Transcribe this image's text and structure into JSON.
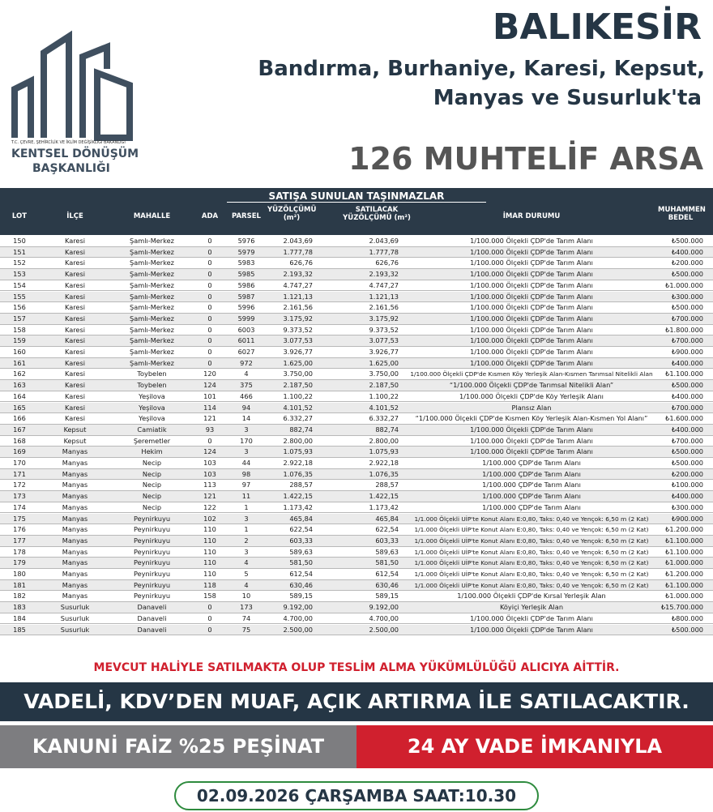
{
  "logo": {
    "ministry": "T.C. ÇEVRE, ŞEHİRCİLİK VE İKLİM DEĞİŞİKLİĞİ BAKANLIĞI",
    "line1": "KENTSEL DÖNÜŞÜM",
    "line2": "BAŞKANLIĞI"
  },
  "header": {
    "title": "BALIKESİR",
    "subtitle1": "Bandırma, Burhaniye, Karesi, Kepsut,",
    "subtitle2": "Manyas ve Susurluk'ta",
    "headline": "126 MUHTELİF ARSA"
  },
  "table": {
    "group_title": "SATIŞA SUNULAN TAŞINMAZLAR",
    "columns": [
      "LOT",
      "İLÇE",
      "MAHALLE",
      "ADA",
      "PARSEL",
      "YÜZÖLÇÜMÜ (m²)",
      "SATILACAK YÜZÖLÇÜMÜ (m²)",
      "İMAR DURUMU",
      "MUHAMMEN BEDEL"
    ],
    "rows": [
      [
        "150",
        "Karesi",
        "Şamlı-Merkez",
        "0",
        "5976",
        "2.043,69",
        "2.043,69",
        "1/100.000 Ölçekli ÇDP'de Tarım Alanı",
        "₺500.000"
      ],
      [
        "151",
        "Karesi",
        "Şamlı-Merkez",
        "0",
        "5979",
        "1.777,78",
        "1.777,78",
        "1/100.000 Ölçekli ÇDP'de Tarım Alanı",
        "₺400.000"
      ],
      [
        "152",
        "Karesi",
        "Şamlı-Merkez",
        "0",
        "5983",
        "626,76",
        "626,76",
        "1/100.000 Ölçekli ÇDP'de Tarım Alanı",
        "₺200.000"
      ],
      [
        "153",
        "Karesi",
        "Şamlı-Merkez",
        "0",
        "5985",
        "2.193,32",
        "2.193,32",
        "1/100.000 Ölçekli ÇDP'de Tarım Alanı",
        "₺500.000"
      ],
      [
        "154",
        "Karesi",
        "Şamlı-Merkez",
        "0",
        "5986",
        "4.747,27",
        "4.747,27",
        "1/100.000 Ölçekli ÇDP'de Tarım Alanı",
        "₺1.000.000"
      ],
      [
        "155",
        "Karesi",
        "Şamlı-Merkez",
        "0",
        "5987",
        "1.121,13",
        "1.121,13",
        "1/100.000 Ölçekli ÇDP'de Tarım Alanı",
        "₺300.000"
      ],
      [
        "156",
        "Karesi",
        "Şamlı-Merkez",
        "0",
        "5996",
        "2.161,56",
        "2.161,56",
        "1/100.000 Ölçekli ÇDP'de Tarım Alanı",
        "₺500.000"
      ],
      [
        "157",
        "Karesi",
        "Şamlı-Merkez",
        "0",
        "5999",
        "3.175,92",
        "3.175,92",
        "1/100.000 Ölçekli ÇDP'de Tarım Alanı",
        "₺700.000"
      ],
      [
        "158",
        "Karesi",
        "Şamlı-Merkez",
        "0",
        "6003",
        "9.373,52",
        "9.373,52",
        "1/100.000 Ölçekli ÇDP'de Tarım Alanı",
        "₺1.800.000"
      ],
      [
        "159",
        "Karesi",
        "Şamlı-Merkez",
        "0",
        "6011",
        "3.077,53",
        "3.077,53",
        "1/100.000 Ölçekli ÇDP'de Tarım Alanı",
        "₺700.000"
      ],
      [
        "160",
        "Karesi",
        "Şamlı-Merkez",
        "0",
        "6027",
        "3.926,77",
        "3.926,77",
        "1/100.000 Ölçekli ÇDP'de Tarım Alanı",
        "₺900.000"
      ],
      [
        "161",
        "Karesi",
        "Şamlı-Merkez",
        "0",
        "972",
        "1.625,00",
        "1.625,00",
        "1/100.000 Ölçekli ÇDP'de Tarım Alanı",
        "₺400.000"
      ],
      [
        "162",
        "Karesi",
        "Toybelen",
        "120",
        "4",
        "3.750,00",
        "3.750,00",
        "1/100.000 Ölçekli ÇDP'de Kısmen Köy Yerleşik Alan-Kısmen Tarımsal Nitelikli Alan",
        "₺1.100.000"
      ],
      [
        "163",
        "Karesi",
        "Toybelen",
        "124",
        "375",
        "2.187,50",
        "2.187,50",
        "“1/100.000 Ölçekli ÇDP'de Tarımsal Nitelikli Alan”",
        "₺500.000"
      ],
      [
        "164",
        "Karesi",
        "Yeşilova",
        "101",
        "466",
        "1.100,22",
        "1.100,22",
        "1/100.000 Ölçekli ÇDP'de Köy Yerleşik Alanı",
        "₺400.000"
      ],
      [
        "165",
        "Karesi",
        "Yeşilova",
        "114",
        "94",
        "4.101,52",
        "4.101,52",
        "Plansız Alan",
        "₺700.000"
      ],
      [
        "166",
        "Karesi",
        "Yeşilova",
        "121",
        "14",
        "6.332,27",
        "6.332,27",
        "“1/100.000 Ölçekli ÇDP'de Kısmen Köy Yerleşik Alan-Kısmen Yol Alanı”",
        "₺1.600.000"
      ],
      [
        "167",
        "Kepsut",
        "Camiatik",
        "93",
        "3",
        "882,74",
        "882,74",
        "1/100.000 Ölçekli ÇDP'de Tarım Alanı",
        "₺400.000"
      ],
      [
        "168",
        "Kepsut",
        "Şeremetler",
        "0",
        "170",
        "2.800,00",
        "2.800,00",
        "1/100.000 Ölçekli ÇDP'de Tarım Alanı",
        "₺700.000"
      ],
      [
        "169",
        "Manyas",
        "Hekim",
        "124",
        "3",
        "1.075,93",
        "1.075,93",
        "1/100.000 Ölçekli ÇDP'de Tarım Alanı",
        "₺500.000"
      ],
      [
        "170",
        "Manyas",
        "Necip",
        "103",
        "44",
        "2.922,18",
        "2.922,18",
        "1/100.000 ÇDP'de Tarım Alanı",
        "₺500.000"
      ],
      [
        "171",
        "Manyas",
        "Necip",
        "103",
        "98",
        "1.076,35",
        "1.076,35",
        "1/100.000 ÇDP'de Tarım Alanı",
        "₺200.000"
      ],
      [
        "172",
        "Manyas",
        "Necip",
        "113",
        "97",
        "288,57",
        "288,57",
        "1/100.000 ÇDP'de Tarım Alanı",
        "₺100.000"
      ],
      [
        "173",
        "Manyas",
        "Necip",
        "121",
        "11",
        "1.422,15",
        "1.422,15",
        "1/100.000 ÇDP'de Tarım Alanı",
        "₺400.000"
      ],
      [
        "174",
        "Manyas",
        "Necip",
        "122",
        "1",
        "1.173,42",
        "1.173,42",
        "1/100.000 ÇDP'de Tarım Alanı",
        "₺300.000"
      ],
      [
        "175",
        "Manyas",
        "Peynirkuyu",
        "102",
        "3",
        "465,84",
        "465,84",
        "1/1.000 Ölçekli UİP'te Konut Alanı E:0,80, Taks: 0,40 ve Yençok: 6,50 m (2 Kat)",
        "₺900.000"
      ],
      [
        "176",
        "Manyas",
        "Peynirkuyu",
        "110",
        "1",
        "622,54",
        "622,54",
        "1/1.000 Ölçekli UİP'te Konut Alanı E:0,80, Taks: 0,40 ve Yençok: 6,50 m (2 Kat)",
        "₺1.200.000"
      ],
      [
        "177",
        "Manyas",
        "Peynirkuyu",
        "110",
        "2",
        "603,33",
        "603,33",
        "1/1.000 Ölçekli UİP'te Konut Alanı E:0,80, Taks: 0,40 ve Yençok: 6,50 m (2 Kat)",
        "₺1.100.000"
      ],
      [
        "178",
        "Manyas",
        "Peynirkuyu",
        "110",
        "3",
        "589,63",
        "589,63",
        "1/1.000 Ölçekli UİP'te Konut Alanı E:0,80, Taks: 0,40 ve Yençok: 6,50 m (2 Kat)",
        "₺1.100.000"
      ],
      [
        "179",
        "Manyas",
        "Peynirkuyu",
        "110",
        "4",
        "581,50",
        "581,50",
        "1/1.000 Ölçekli UİP'te Konut Alanı E:0,80, Taks: 0,40 ve Yençok: 6,50 m (2 Kat)",
        "₺1.000.000"
      ],
      [
        "180",
        "Manyas",
        "Peynirkuyu",
        "110",
        "5",
        "612,54",
        "612,54",
        "1/1.000 Ölçekli UİP'te Konut Alanı E:0,80, Taks: 0,40 ve Yençok: 6,50 m (2 Kat)",
        "₺1.200.000"
      ],
      [
        "181",
        "Manyas",
        "Peynirkuyu",
        "118",
        "4",
        "630,46",
        "630,46",
        "1/1.000 Ölçekli UİP'te Konut Alanı E:0,80, Taks: 0,40 ve Yençok: 6,50 m (2 Kat)",
        "₺1.100.000"
      ],
      [
        "182",
        "Manyas",
        "Peynirkuyu",
        "158",
        "10",
        "589,15",
        "589,15",
        "1/100.000 Ölçekli ÇDP'de Kırsal Yerleşik Alan",
        "₺1.000.000"
      ],
      [
        "183",
        "Susurluk",
        "Danaveli",
        "0",
        "173",
        "9.192,00",
        "9.192,00",
        "Köyiçi Yerleşik Alan",
        "₺15.700.000"
      ],
      [
        "184",
        "Susurluk",
        "Danaveli",
        "0",
        "74",
        "4.700,00",
        "4.700,00",
        "1/100.000 Ölçekli ÇDP'de Tarım Alanı",
        "₺800.000"
      ],
      [
        "185",
        "Susurluk",
        "Danaveli",
        "0",
        "75",
        "2.500,00",
        "2.500,00",
        "1/100.000 Ölçekli ÇDP'de Tarım Alanı",
        "₺500.000"
      ]
    ]
  },
  "footer": {
    "notice": "MEVCUT HALİYLE SATILMAKTA OLUP TESLİM ALMA YÜKÜMLÜLÜĞÜ ALICIYA AİTTİR.",
    "band": "VADELİ, KDV’DEN MUAF, AÇIK ARTIRMA İLE SATILACAKTIR.",
    "left": "KANUNİ FAİZ %25 PEŞİNAT",
    "right": "24 AY VADE İMKANIYLA",
    "date": "02.09.2026 ÇARŞAMBA SAAT:10.30"
  }
}
